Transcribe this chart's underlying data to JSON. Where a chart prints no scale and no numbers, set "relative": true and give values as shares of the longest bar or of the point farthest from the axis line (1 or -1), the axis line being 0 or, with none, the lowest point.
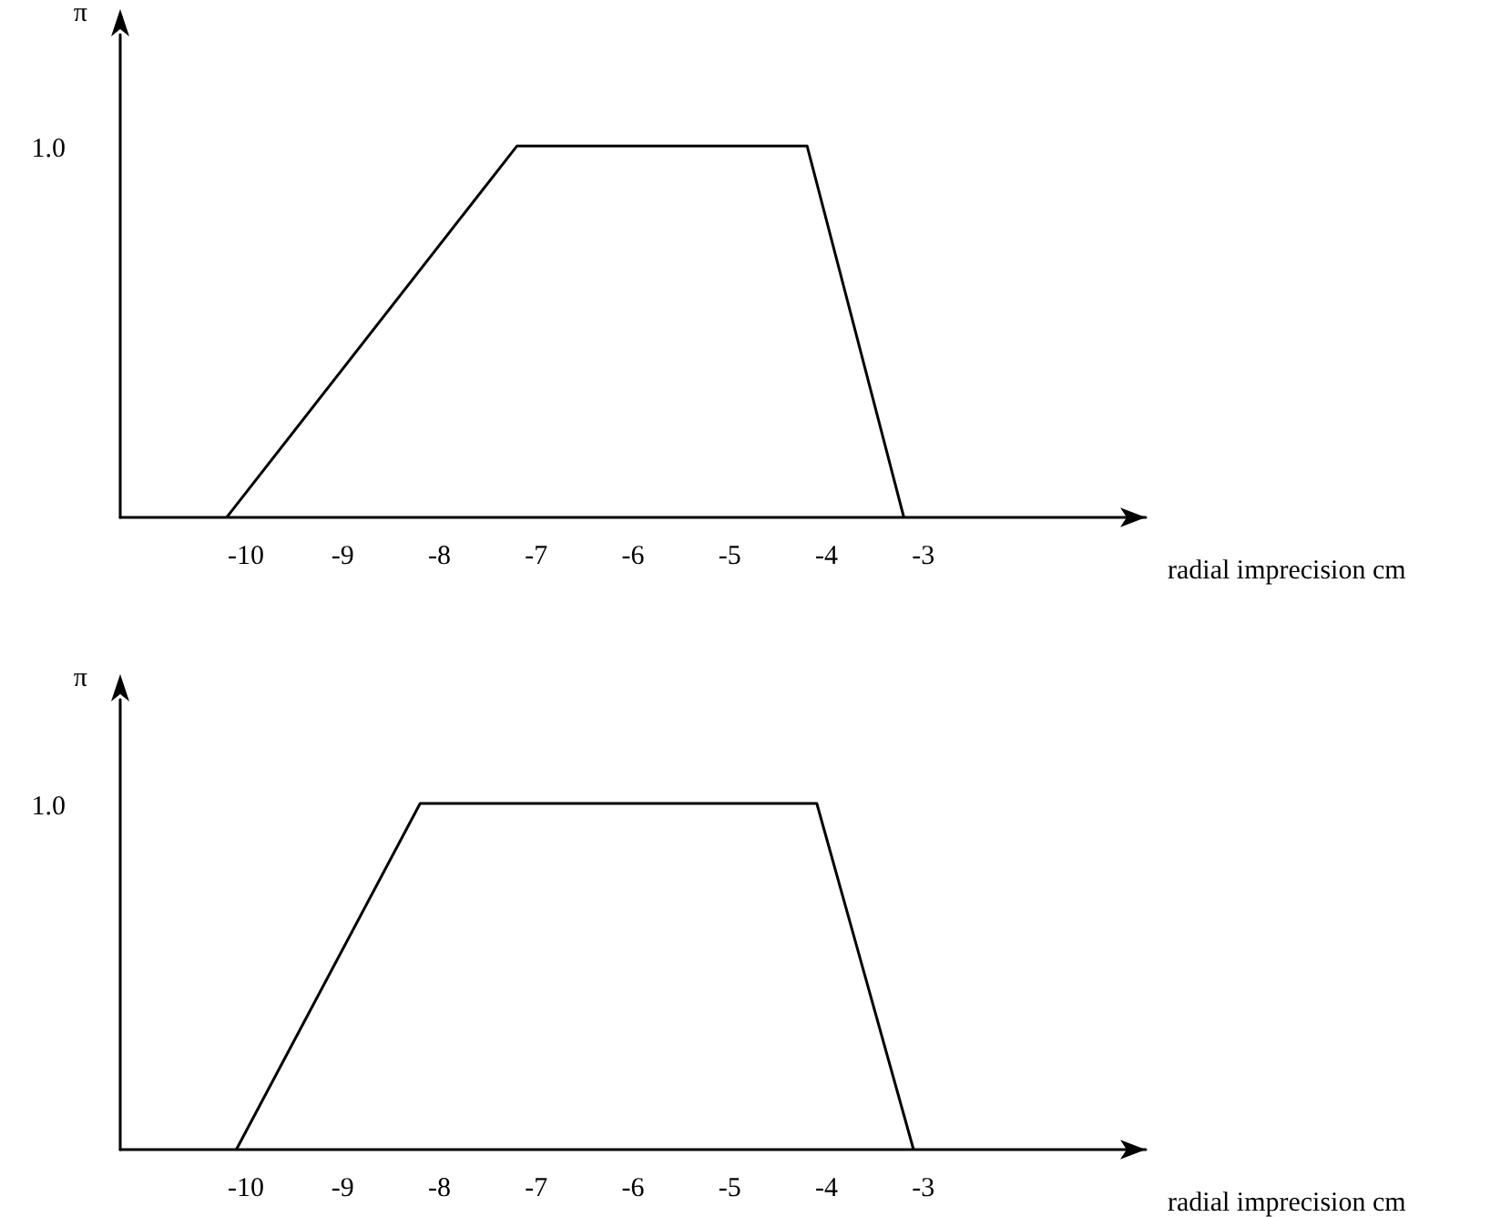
{
  "chart_data": [
    {
      "type": "line",
      "xlabel": "radial imprecision cm",
      "ylabel": "π",
      "relative": true,
      "x": [
        -10.2,
        -7.2,
        -4.2,
        -3.2
      ],
      "xlim": [
        -11.3,
        -0.7
      ],
      "xticks": [
        -10,
        -9,
        -8,
        -7,
        -6,
        -5,
        -4,
        -3
      ],
      "series": [
        {
          "color": "#000000",
          "values": [
            0,
            1,
            1,
            0
          ]
        }
      ],
      "annotations": [
        "1.0"
      ],
      "marker": "none",
      "line_style": "solid"
    },
    {
      "type": "line",
      "xlabel": "radial imprecision cm",
      "ylabel": "π",
      "relative": true,
      "x": [
        -10.1,
        -8.2,
        -4.1,
        -3.1
      ],
      "xlim": [
        -11.3,
        -0.7
      ],
      "xticks": [
        -10,
        -9,
        -8,
        -7,
        -6,
        -5,
        -4,
        -3
      ],
      "series": [
        {
          "color": "#000000",
          "values": [
            0,
            1,
            1,
            0
          ]
        }
      ],
      "annotations": [
        "1.0"
      ],
      "marker": "none",
      "line_style": "solid"
    }
  ]
}
